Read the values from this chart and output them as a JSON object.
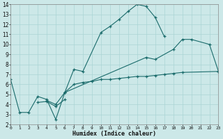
{
  "xlabel": "Humidex (Indice chaleur)",
  "bg_color": "#cce8e8",
  "grid_color": "#aad4d4",
  "line_color": "#1a6b6b",
  "xlim": [
    0,
    23
  ],
  "ylim": [
    2,
    14
  ],
  "xticks": [
    0,
    1,
    2,
    3,
    4,
    5,
    6,
    7,
    8,
    9,
    10,
    11,
    12,
    13,
    14,
    15,
    16,
    17,
    18,
    19,
    20,
    21,
    22,
    23
  ],
  "yticks": [
    2,
    3,
    4,
    5,
    6,
    7,
    8,
    9,
    10,
    11,
    12,
    13,
    14
  ],
  "curves": [
    {
      "x": [
        0,
        1,
        2,
        3,
        4,
        5,
        6,
        7,
        8,
        10,
        11,
        12,
        13,
        14,
        15,
        16,
        17
      ],
      "y": [
        6.5,
        3.2,
        3.2,
        4.8,
        4.5,
        2.5,
        5.2,
        7.5,
        7.3,
        11.2,
        11.8,
        12.5,
        13.3,
        14.0,
        13.8,
        12.7,
        10.8
      ]
    },
    {
      "x": [
        3,
        4,
        5,
        6
      ],
      "y": [
        4.2,
        4.3,
        3.8,
        4.5
      ]
    },
    {
      "x": [
        4,
        5,
        6,
        15,
        16,
        18,
        19,
        20,
        22,
        23
      ],
      "y": [
        4.4,
        4.0,
        5.2,
        8.7,
        8.5,
        9.5,
        10.5,
        10.5,
        10.0,
        7.3
      ]
    },
    {
      "x": [
        6,
        7,
        8,
        9,
        10,
        11,
        12,
        13,
        14,
        15,
        16,
        17,
        18,
        19,
        23
      ],
      "y": [
        5.2,
        6.0,
        6.2,
        6.3,
        6.5,
        6.5,
        6.6,
        6.7,
        6.8,
        6.8,
        6.9,
        7.0,
        7.1,
        7.2,
        7.3
      ]
    }
  ]
}
